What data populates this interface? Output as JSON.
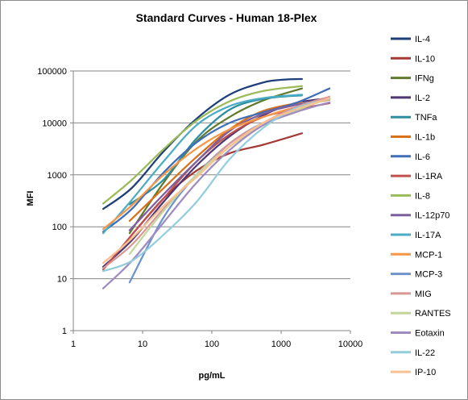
{
  "chart_data": {
    "type": "line",
    "title": "Standard Curves - Human 18-Plex",
    "xlabel": "pg/mL",
    "ylabel": "MFI",
    "x_scale": "log",
    "y_scale": "log",
    "xlim": [
      1,
      10000
    ],
    "ylim": [
      1,
      100000
    ],
    "x_ticks": [
      "1",
      "10",
      "100",
      "1000",
      "10000"
    ],
    "y_ticks": [
      "1",
      "10",
      "100",
      "1000",
      "10000",
      "100000"
    ],
    "grid": "horizontal",
    "legend_position": "right",
    "series": [
      {
        "name": "IL-4",
        "color": "#1f3f7a",
        "x": [
          2.7,
          7,
          20,
          60,
          180,
          550,
          1100,
          2000
        ],
        "y": [
          220,
          560,
          2800,
          12000,
          35000,
          60000,
          68000,
          70000
        ]
      },
      {
        "name": "IL-10",
        "color": "#a33a36",
        "x": [
          6.5,
          20,
          60,
          180,
          550,
          2000
        ],
        "y": [
          62,
          350,
          1200,
          2600,
          3800,
          6300
        ]
      },
      {
        "name": "IFNg",
        "color": "#617a2d",
        "x": [
          6.5,
          20,
          60,
          180,
          550,
          2000
        ],
        "y": [
          75,
          700,
          4400,
          13000,
          27000,
          46000
        ]
      },
      {
        "name": "IL-2",
        "color": "#4f3675",
        "x": [
          2.7,
          7,
          20,
          60,
          180,
          550,
          1600,
          5000
        ],
        "y": [
          17,
          55,
          300,
          1500,
          5500,
          14000,
          24000,
          30000
        ]
      },
      {
        "name": "TNFa",
        "color": "#2d8ea0",
        "x": [
          6.5,
          20,
          60,
          180,
          550,
          2000
        ],
        "y": [
          270,
          800,
          5000,
          18000,
          29000,
          34000
        ]
      },
      {
        "name": "IL-1b",
        "color": "#d8711a",
        "x": [
          6.5,
          20,
          60,
          180,
          550,
          2000
        ],
        "y": [
          130,
          550,
          2200,
          7500,
          17000,
          25000
        ]
      },
      {
        "name": "IL-6",
        "color": "#3f6db8",
        "x": [
          2.7,
          7,
          20,
          60,
          180,
          550,
          1600,
          5000
        ],
        "y": [
          80,
          220,
          1100,
          4200,
          10000,
          16000,
          24000,
          46000
        ]
      },
      {
        "name": "IL-1RA",
        "color": "#c0504d",
        "x": [
          2.7,
          7,
          20,
          60,
          180,
          550,
          1600,
          5000
        ],
        "y": [
          15,
          70,
          350,
          1800,
          6000,
          13000,
          18000,
          24000
        ]
      },
      {
        "name": "IL-8",
        "color": "#9bbb59",
        "x": [
          2.7,
          7,
          20,
          60,
          180,
          550,
          2000
        ],
        "y": [
          280,
          800,
          3100,
          11000,
          26000,
          41000,
          51000
        ]
      },
      {
        "name": "IL-12p70",
        "color": "#7d5fa0",
        "x": [
          6.5,
          20,
          60,
          180,
          550,
          1600,
          5000
        ],
        "y": [
          85,
          420,
          1800,
          7000,
          15000,
          22000,
          28000
        ]
      },
      {
        "name": "IL-17A",
        "color": "#4bacc6",
        "x": [
          2.7,
          7,
          20,
          60,
          180,
          550,
          2000
        ],
        "y": [
          75,
          330,
          1800,
          9000,
          21000,
          30000,
          35000
        ]
      },
      {
        "name": "MCP-1",
        "color": "#f79646",
        "x": [
          2.7,
          7,
          20,
          60,
          180,
          550,
          1600,
          5000
        ],
        "y": [
          90,
          260,
          1000,
          3200,
          7500,
          13000,
          20000,
          28000
        ]
      },
      {
        "name": "MCP-3",
        "color": "#6f93cb",
        "x": [
          6.5,
          20,
          60,
          180,
          550,
          2000
        ],
        "y": [
          8.5,
          150,
          1000,
          4000,
          10000,
          18000
        ]
      },
      {
        "name": "MIG",
        "color": "#d99694",
        "x": [
          2.7,
          7,
          20,
          60,
          180,
          550,
          1600,
          5000
        ],
        "y": [
          16,
          45,
          220,
          1000,
          4000,
          10000,
          20000,
          32000
        ]
      },
      {
        "name": "RANTES",
        "color": "#c3d69b",
        "x": [
          6.5,
          20,
          60,
          180,
          550,
          1600,
          5000
        ],
        "y": [
          30,
          200,
          1000,
          3500,
          9000,
          17000,
          30000
        ]
      },
      {
        "name": "Eotaxin",
        "color": "#9f8bc0",
        "x": [
          2.7,
          7,
          20,
          60,
          180,
          550,
          1600,
          5000
        ],
        "y": [
          6.5,
          22,
          120,
          700,
          3000,
          9000,
          16000,
          25000
        ]
      },
      {
        "name": "IL-22",
        "color": "#93cddd",
        "x": [
          2.7,
          7,
          20,
          60,
          180,
          550,
          1600,
          5000
        ],
        "y": [
          14,
          22,
          70,
          300,
          2000,
          8000,
          19000,
          29000
        ]
      },
      {
        "name": "IP-10",
        "color": "#fac08f",
        "x": [
          2.7,
          7,
          20,
          60,
          180,
          550,
          1600,
          5000
        ],
        "y": [
          20,
          60,
          250,
          900,
          3500,
          10000,
          18000,
          30000
        ]
      }
    ]
  }
}
